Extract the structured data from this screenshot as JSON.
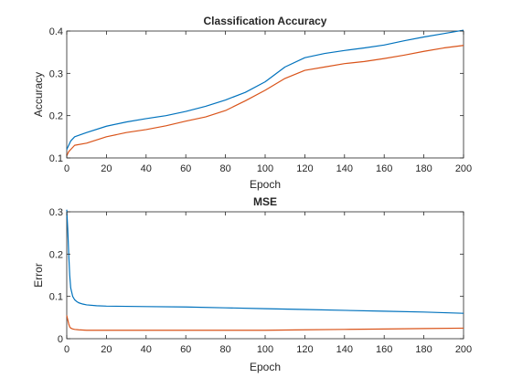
{
  "chart_data": [
    {
      "type": "line",
      "title": "Classification Accuracy",
      "xlabel": "Epoch",
      "ylabel": "Accuracy",
      "xlim": [
        0,
        200
      ],
      "ylim": [
        0.1,
        0.4
      ],
      "xticks": [
        "0",
        "20",
        "40",
        "60",
        "80",
        "100",
        "120",
        "140",
        "160",
        "180",
        "200"
      ],
      "yticks": [
        "0.1",
        "0.2",
        "0.3",
        "0.4"
      ],
      "xtick_values": [
        0,
        20,
        40,
        60,
        80,
        100,
        120,
        140,
        160,
        180,
        200
      ],
      "ytick_values": [
        0.1,
        0.2,
        0.3,
        0.4
      ],
      "grid": false,
      "series": [
        {
          "color": "#0072BD",
          "x": [
            0,
            1,
            2,
            4,
            10,
            20,
            30,
            40,
            50,
            60,
            70,
            80,
            90,
            100,
            110,
            120,
            130,
            140,
            150,
            160,
            170,
            180,
            190,
            200
          ],
          "y": [
            0.12,
            0.13,
            0.14,
            0.15,
            0.16,
            0.175,
            0.185,
            0.193,
            0.2,
            0.21,
            0.222,
            0.237,
            0.255,
            0.28,
            0.315,
            0.337,
            0.347,
            0.354,
            0.36,
            0.367,
            0.377,
            0.386,
            0.394,
            0.402
          ]
        },
        {
          "color": "#D95319",
          "x": [
            0,
            1,
            2,
            4,
            10,
            20,
            30,
            40,
            50,
            60,
            70,
            80,
            90,
            100,
            110,
            120,
            130,
            140,
            150,
            160,
            170,
            180,
            190,
            200
          ],
          "y": [
            0.105,
            0.115,
            0.12,
            0.13,
            0.135,
            0.15,
            0.16,
            0.167,
            0.176,
            0.187,
            0.197,
            0.212,
            0.235,
            0.26,
            0.288,
            0.307,
            0.315,
            0.323,
            0.328,
            0.335,
            0.343,
            0.352,
            0.36,
            0.366
          ]
        }
      ]
    },
    {
      "type": "line",
      "title": "MSE",
      "xlabel": "Epoch",
      "ylabel": "Error",
      "xlim": [
        0,
        200
      ],
      "ylim": [
        0,
        0.3
      ],
      "xticks": [
        "0",
        "20",
        "40",
        "60",
        "80",
        "100",
        "120",
        "140",
        "160",
        "180",
        "200"
      ],
      "yticks": [
        "0",
        "0.1",
        "0.2",
        "0.3"
      ],
      "xtick_values": [
        0,
        20,
        40,
        60,
        80,
        100,
        120,
        140,
        160,
        180,
        200
      ],
      "ytick_values": [
        0,
        0.1,
        0.2,
        0.3
      ],
      "grid": false,
      "series": [
        {
          "color": "#0072BD",
          "x": [
            0,
            0.5,
            1,
            1.5,
            2,
            3,
            4,
            5,
            6,
            8,
            10,
            15,
            20,
            40,
            60,
            80,
            100,
            120,
            140,
            160,
            180,
            200
          ],
          "y": [
            0.305,
            0.26,
            0.2,
            0.15,
            0.12,
            0.1,
            0.092,
            0.088,
            0.085,
            0.082,
            0.08,
            0.078,
            0.077,
            0.076,
            0.075,
            0.073,
            0.071,
            0.069,
            0.067,
            0.065,
            0.063,
            0.06
          ]
        },
        {
          "color": "#D95319",
          "x": [
            0,
            0.5,
            1,
            1.5,
            2,
            3,
            4,
            6,
            10,
            20,
            40,
            60,
            80,
            100,
            120,
            140,
            160,
            180,
            200
          ],
          "y": [
            0.055,
            0.045,
            0.035,
            0.028,
            0.025,
            0.023,
            0.022,
            0.021,
            0.02,
            0.02,
            0.02,
            0.02,
            0.02,
            0.02,
            0.021,
            0.022,
            0.023,
            0.024,
            0.025
          ]
        }
      ]
    }
  ]
}
